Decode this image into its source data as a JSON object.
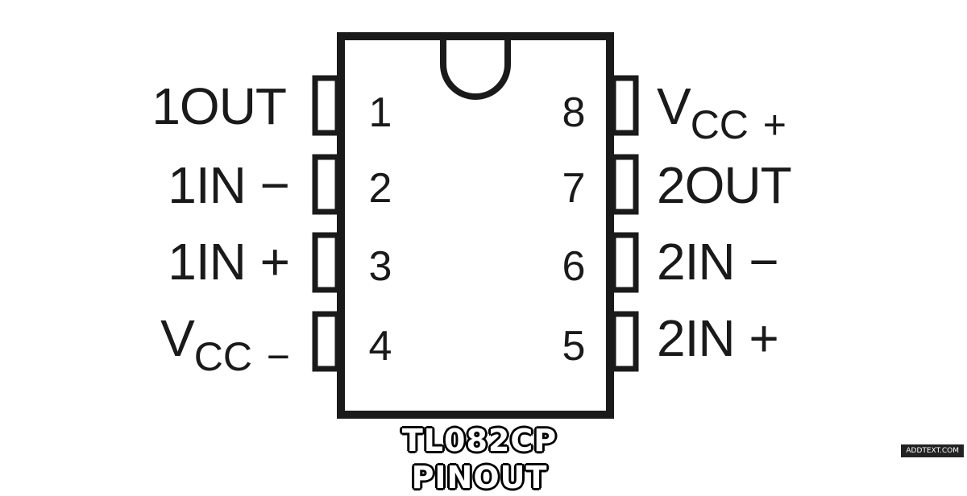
{
  "pins": {
    "left": [
      {
        "number": "1",
        "name": "1OUT",
        "sub": "",
        "suffix": ""
      },
      {
        "number": "2",
        "name": "1IN",
        "sub": "",
        "suffix": "−"
      },
      {
        "number": "3",
        "name": "1IN",
        "sub": "",
        "suffix": "+"
      },
      {
        "number": "4",
        "name": "V",
        "sub": "CC",
        "suffix": "−"
      }
    ],
    "right": [
      {
        "number": "8",
        "name": "V",
        "sub": "CC",
        "suffix": "+"
      },
      {
        "number": "7",
        "name": "2OUT",
        "sub": "",
        "suffix": ""
      },
      {
        "number": "6",
        "name": "2IN",
        "sub": "",
        "suffix": "−"
      },
      {
        "number": "5",
        "name": "2IN",
        "sub": "",
        "suffix": "+"
      }
    ]
  },
  "caption": "TL082CP PINOUT",
  "watermark": "ADDTEXT.COM",
  "colors": {
    "ink": "#1a1a1a",
    "background": "#ffffff"
  }
}
